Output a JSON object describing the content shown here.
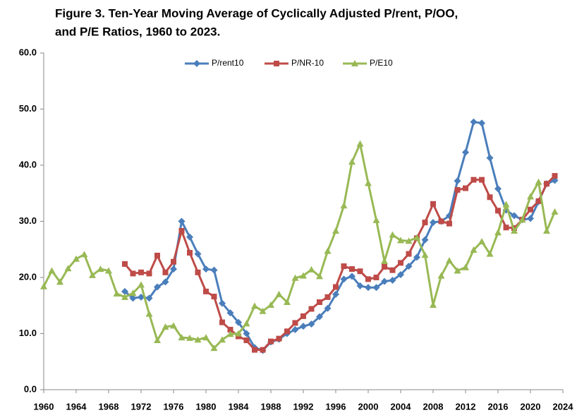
{
  "chart_data": {
    "type": "line",
    "title": [
      "Figure 3.  Ten-Year Moving Average of Cyclically Adjusted P/rent, P/OO,",
      "and P/E Ratios, 1960 to 2023."
    ],
    "xlim": [
      1960,
      2024
    ],
    "xticks": [
      1960,
      1964,
      1968,
      1972,
      1976,
      1980,
      1984,
      1988,
      1992,
      1996,
      2000,
      2004,
      2008,
      2012,
      2016,
      2020,
      2024
    ],
    "ylim": [
      0,
      60
    ],
    "yticks": [
      {
        "value": 0,
        "label": "0.0"
      },
      {
        "value": 10,
        "label": "10.0"
      },
      {
        "value": 20,
        "label": "20.0"
      },
      {
        "value": 30,
        "label": "30.0"
      },
      {
        "value": 40,
        "label": "40.0"
      },
      {
        "value": 50,
        "label": "50.0"
      },
      {
        "value": 60,
        "label": "60.0"
      }
    ],
    "grid": false,
    "legend": "top",
    "series": [
      {
        "name": "P/rent10",
        "color": "#4a7ebb",
        "marker": "diamond",
        "x": [
          1970,
          1971,
          1972,
          1973,
          1974,
          1975,
          1976,
          1977,
          1978,
          1979,
          1980,
          1981,
          1982,
          1983,
          1984,
          1985,
          1986,
          1987,
          1988,
          1989,
          1990,
          1991,
          1992,
          1993,
          1994,
          1995,
          1996,
          1997,
          1998,
          1999,
          2000,
          2001,
          2002,
          2003,
          2004,
          2005,
          2006,
          2007,
          2008,
          2009,
          2010,
          2011,
          2012,
          2013,
          2014,
          2015,
          2016,
          2017,
          2018,
          2019,
          2020,
          2021,
          2022,
          2023
        ],
        "values": [
          17.5,
          16.3,
          16.5,
          16.3,
          18.3,
          19.2,
          21.5,
          30.0,
          27.2,
          24.2,
          21.5,
          21.3,
          15.4,
          13.7,
          12.0,
          10.0,
          7.5,
          7.0,
          8.5,
          9.0,
          10.0,
          10.7,
          11.3,
          11.7,
          13.0,
          14.5,
          17.0,
          19.7,
          20.2,
          18.5,
          18.2,
          18.2,
          19.3,
          19.5,
          20.5,
          22.0,
          23.6,
          26.7,
          29.8,
          30.0,
          31.0,
          37.2,
          42.3,
          47.7,
          47.5,
          41.3,
          35.8,
          32.0,
          31.0,
          30.3,
          30.5,
          33.5,
          36.7,
          37.3
        ]
      },
      {
        "name": "P/NR-10",
        "color": "#be4b48",
        "marker": "square",
        "x": [
          1970,
          1971,
          1972,
          1973,
          1974,
          1975,
          1976,
          1977,
          1978,
          1979,
          1980,
          1981,
          1982,
          1983,
          1984,
          1985,
          1986,
          1987,
          1988,
          1989,
          1990,
          1991,
          1992,
          1993,
          1994,
          1995,
          1996,
          1997,
          1998,
          1999,
          2000,
          2001,
          2002,
          2003,
          2004,
          2005,
          2006,
          2007,
          2008,
          2009,
          2010,
          2011,
          2012,
          2013,
          2014,
          2015,
          2016,
          2017,
          2018,
          2019,
          2020,
          2021,
          2022,
          2023
        ],
        "values": [
          22.4,
          20.7,
          20.9,
          20.7,
          23.9,
          20.9,
          22.8,
          28.3,
          24.4,
          20.9,
          17.5,
          16.6,
          12.0,
          10.7,
          9.5,
          8.8,
          7.1,
          7.1,
          8.6,
          9.1,
          10.4,
          11.9,
          13.1,
          14.4,
          15.6,
          16.5,
          18.3,
          22.0,
          21.5,
          21.1,
          19.7,
          20.0,
          21.9,
          21.3,
          22.6,
          24.2,
          27.0,
          29.8,
          33.1,
          30.0,
          29.6,
          35.6,
          35.9,
          37.4,
          37.4,
          34.3,
          31.9,
          28.9,
          28.8,
          30.3,
          32.1,
          33.6,
          36.7,
          38.1
        ]
      },
      {
        "name": "P/E10",
        "color": "#98b954",
        "marker": "triangle",
        "x": [
          1960,
          1961,
          1962,
          1963,
          1964,
          1965,
          1966,
          1967,
          1968,
          1969,
          1970,
          1971,
          1972,
          1973,
          1974,
          1975,
          1976,
          1977,
          1978,
          1979,
          1980,
          1981,
          1982,
          1983,
          1984,
          1985,
          1986,
          1987,
          1988,
          1989,
          1990,
          1991,
          1992,
          1993,
          1994,
          1995,
          1996,
          1997,
          1998,
          1999,
          2000,
          2001,
          2002,
          2003,
          2004,
          2005,
          2006,
          2007,
          2008,
          2009,
          2010,
          2011,
          2012,
          2013,
          2014,
          2015,
          2016,
          2017,
          2018,
          2019,
          2020,
          2021,
          2022,
          2023
        ],
        "values": [
          18.4,
          21.2,
          19.2,
          21.6,
          23.3,
          24.1,
          20.4,
          21.5,
          21.2,
          17.1,
          16.5,
          17.2,
          18.7,
          13.5,
          8.8,
          11.2,
          11.4,
          9.3,
          9.2,
          8.9,
          9.3,
          7.4,
          8.9,
          9.9,
          10.0,
          11.8,
          14.9,
          14.0,
          15.1,
          17.0,
          15.6,
          19.9,
          20.3,
          21.4,
          20.2,
          24.7,
          28.3,
          32.8,
          40.6,
          43.8,
          36.8,
          30.2,
          22.9,
          27.6,
          26.6,
          26.5,
          27.1,
          24.0,
          15.1,
          20.3,
          23.0,
          21.2,
          21.8,
          24.9,
          26.4,
          24.2,
          28.0,
          33.0,
          28.3,
          30.3,
          34.4,
          37.0,
          28.3,
          31.7
        ]
      }
    ]
  }
}
